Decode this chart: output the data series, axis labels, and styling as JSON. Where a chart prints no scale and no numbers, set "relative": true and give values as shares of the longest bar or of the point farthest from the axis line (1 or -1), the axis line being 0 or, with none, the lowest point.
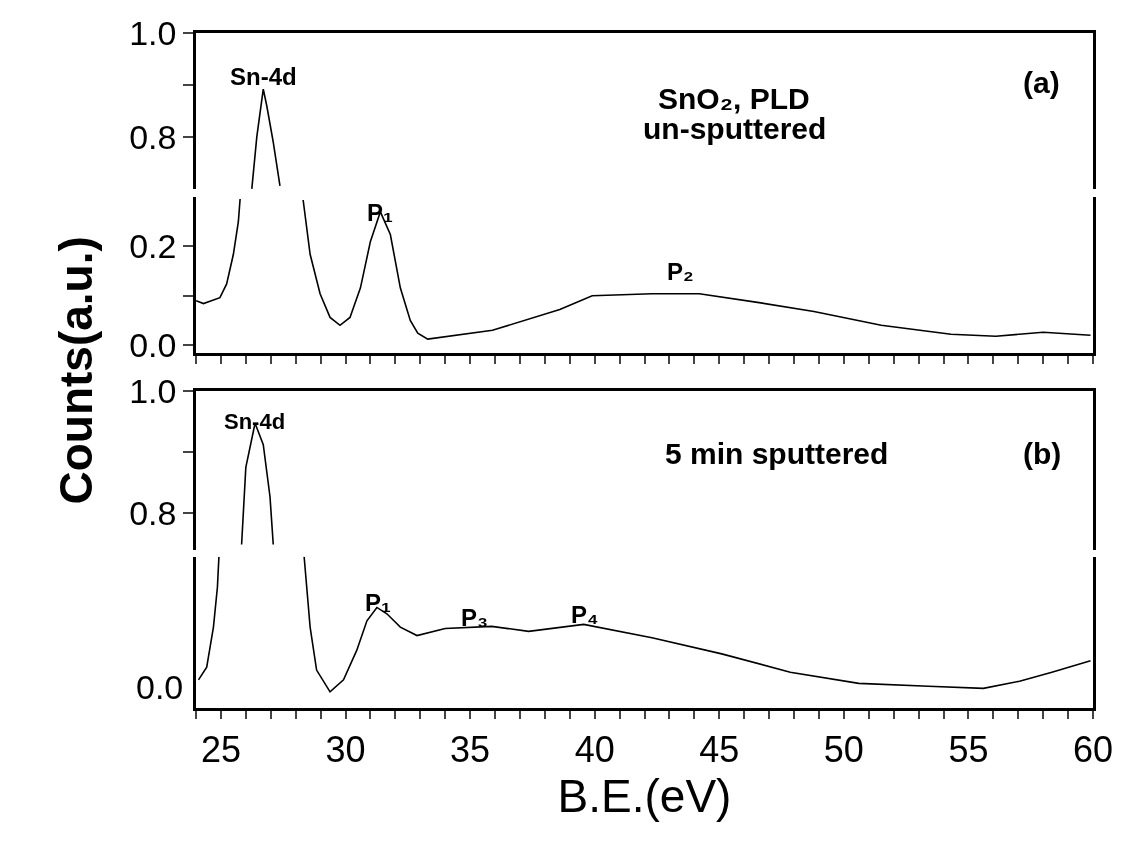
{
  "chart_data": [
    {
      "type": "line",
      "ylabel": "Counts(a.u.)",
      "xlim": [
        24,
        60
      ],
      "ylim": [
        0.7,
        1.0
      ],
      "yticks": [
        {
          "value": 0.8,
          "label": "0.8"
        },
        {
          "value": 0.9,
          "label": null
        },
        {
          "value": 1.0,
          "label": "1.0"
        }
      ],
      "tick_labels": "y",
      "series": [
        {
          "color": "#000000",
          "x": [
            26.24,
            26.44,
            26.7,
            26.84,
            27.1,
            27.37
          ],
          "values": [
            0.7,
            0.8,
            0.892,
            0.86,
            0.79,
            0.706
          ]
        }
      ],
      "annotations": [
        "Sn-4d",
        "SnO₂, PLD",
        "un-sputtered",
        "(a)"
      ]
    },
    {
      "type": "line",
      "xlim": [
        24,
        60
      ],
      "ylim": [
        -0.016,
        0.3
      ],
      "yticks": [
        {
          "value": 0.0,
          "label": "0.0"
        },
        {
          "value": 0.1,
          "label": null
        },
        {
          "value": 0.2,
          "label": "0.2"
        }
      ],
      "tick_labels": "y",
      "xticks": [
        {
          "value": 24,
          "label": null
        },
        25,
        {
          "value": 26,
          "label": null
        },
        {
          "value": 27,
          "label": null
        },
        {
          "value": 28,
          "label": null
        },
        {
          "value": 29,
          "label": null
        },
        30,
        {
          "value": 31,
          "label": null
        },
        {
          "value": 32,
          "label": null
        },
        {
          "value": 33,
          "label": null
        },
        {
          "value": 34,
          "label": null
        },
        35,
        {
          "value": 36,
          "label": null
        },
        {
          "value": 37,
          "label": null
        },
        {
          "value": 38,
          "label": null
        },
        {
          "value": 39,
          "label": null
        },
        40,
        {
          "value": 41,
          "label": null
        },
        {
          "value": 42,
          "label": null
        },
        {
          "value": 43,
          "label": null
        },
        {
          "value": 44,
          "label": null
        },
        45,
        {
          "value": 46,
          "label": null
        },
        {
          "value": 47,
          "label": null
        },
        {
          "value": 48,
          "label": null
        },
        {
          "value": 49,
          "label": null
        },
        50,
        {
          "value": 51,
          "label": null
        },
        {
          "value": 52,
          "label": null
        },
        {
          "value": 53,
          "label": null
        },
        {
          "value": 54,
          "label": null
        },
        55,
        {
          "value": 56,
          "label": null
        },
        {
          "value": 57,
          "label": null
        },
        {
          "value": 58,
          "label": null
        },
        {
          "value": 59,
          "label": null
        },
        60
      ],
      "series": [
        {
          "color": "#000000",
          "x": [
            24.0,
            24.3,
            24.96,
            25.23,
            25.5,
            25.7,
            25.77,
            null,
            28.3,
            28.58,
            28.98,
            29.38,
            29.78,
            30.18,
            30.6,
            31.0,
            31.4,
            31.8,
            32.2,
            32.6,
            32.9,
            33.3,
            35.9,
            38.6,
            39.9,
            42.3,
            44.2,
            46.6,
            48.8,
            51.5,
            54.3,
            56.1,
            58.0,
            59.9
          ],
          "values": [
            0.09,
            0.084,
            0.096,
            0.124,
            0.184,
            0.25,
            0.296,
            null,
            0.294,
            0.184,
            0.104,
            0.056,
            0.04,
            0.056,
            0.116,
            0.21,
            0.27,
            0.224,
            0.116,
            0.05,
            0.024,
            0.012,
            0.03,
            0.072,
            0.1,
            0.104,
            0.104,
            0.086,
            0.068,
            0.04,
            0.022,
            0.018,
            0.026,
            0.02
          ]
        }
      ],
      "annotations": [
        "P₁",
        "P₂"
      ]
    },
    {
      "type": "line",
      "xlim": [
        24,
        60
      ],
      "ylim": [
        0.74,
        1.0
      ],
      "yticks": [
        {
          "value": 0.8,
          "label": "0.8"
        },
        {
          "value": 0.9,
          "label": null
        },
        {
          "value": 1.0,
          "label": "1.0"
        }
      ],
      "tick_labels": "y",
      "series": [
        {
          "color": "#000000",
          "x": [
            25.83,
            26.0,
            26.37,
            26.7,
            26.97,
            27.1
          ],
          "values": [
            0.749,
            0.875,
            0.947,
            0.912,
            0.827,
            0.749
          ]
        }
      ],
      "annotations": [
        "Sn-4d",
        "5 min sputtered",
        "(b)"
      ]
    },
    {
      "type": "line",
      "relative": true,
      "xlabel": "B.E.(eV)",
      "xlim": [
        24,
        60
      ],
      "tick_labels": "x",
      "xticks": [
        {
          "value": 24,
          "label": null
        },
        25,
        {
          "value": 26,
          "label": null
        },
        {
          "value": 27,
          "label": null
        },
        {
          "value": 28,
          "label": null
        },
        {
          "value": 29,
          "label": null
        },
        30,
        {
          "value": 31,
          "label": null
        },
        {
          "value": 32,
          "label": null
        },
        {
          "value": 33,
          "label": null
        },
        {
          "value": 34,
          "label": null
        },
        35,
        {
          "value": 36,
          "label": null
        },
        {
          "value": 37,
          "label": null
        },
        {
          "value": 38,
          "label": null
        },
        {
          "value": 39,
          "label": null
        },
        40,
        {
          "value": 41,
          "label": null
        },
        {
          "value": 42,
          "label": null
        },
        {
          "value": 43,
          "label": null
        },
        {
          "value": 44,
          "label": null
        },
        45,
        {
          "value": 46,
          "label": null
        },
        {
          "value": 47,
          "label": null
        },
        {
          "value": 48,
          "label": null
        },
        {
          "value": 49,
          "label": null
        },
        50,
        {
          "value": 51,
          "label": null
        },
        {
          "value": 52,
          "label": null
        },
        {
          "value": 53,
          "label": null
        },
        {
          "value": 54,
          "label": null
        },
        55,
        {
          "value": 56,
          "label": null
        },
        {
          "value": 57,
          "label": null
        },
        {
          "value": 58,
          "label": null
        },
        {
          "value": 59,
          "label": null
        },
        60
      ],
      "series": [
        {
          "color": "#000000",
          "x": [
            24.1,
            24.43,
            24.7,
            24.86,
            24.92,
            null,
            28.34,
            28.58,
            28.84,
            29.38,
            29.92,
            30.45,
            30.86,
            31.26,
            31.66,
            32.2,
            32.87,
            34.0,
            35.87,
            37.35,
            39.56,
            42.3,
            45.1,
            47.85,
            50.6,
            53.4,
            55.6,
            57.05,
            58.35,
            59.9
          ],
          "values": [
            0.186,
            0.27,
            0.535,
            0.8,
            1.0,
            null,
            1.0,
            0.535,
            0.251,
            0.107,
            0.186,
            0.381,
            0.577,
            0.665,
            0.623,
            0.535,
            0.479,
            0.526,
            0.54,
            0.507,
            0.553,
            0.465,
            0.358,
            0.237,
            0.163,
            0.144,
            0.13,
            0.177,
            0.237,
            0.312
          ]
        }
      ],
      "annotations": [
        "0.0",
        "P₁",
        "P₃",
        "P₄"
      ]
    }
  ]
}
